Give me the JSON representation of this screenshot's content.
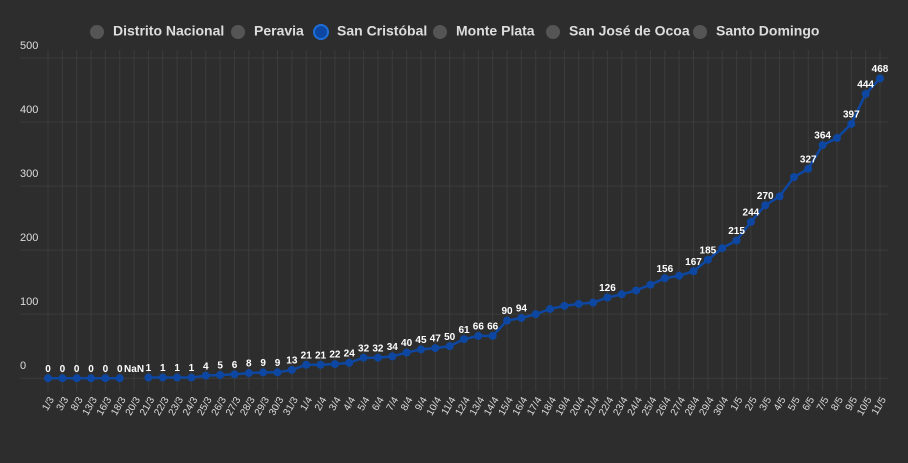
{
  "chart_data": {
    "type": "line",
    "legend": {
      "items": [
        "Distrito Nacional",
        "Peravia",
        "San Cristóbal",
        "Monte Plata",
        "San José de Ocoa",
        "Santo Domingo"
      ],
      "active": 2,
      "inactive_color": "#555555"
    },
    "categories": [
      "1/3",
      "3/3",
      "8/3",
      "13/3",
      "16/3",
      "18/3",
      "20/3",
      "21/3",
      "22/3",
      "23/3",
      "24/3",
      "25/3",
      "26/3",
      "27/3",
      "28/3",
      "29/3",
      "30/3",
      "31/3",
      "1/4",
      "2/4",
      "3/4",
      "4/4",
      "5/4",
      "6/4",
      "7/4",
      "8/4",
      "9/4",
      "10/4",
      "11/4",
      "12/4",
      "13/4",
      "14/4",
      "15/4",
      "16/4",
      "17/4",
      "18/4",
      "19/4",
      "20/4",
      "21/4",
      "22/4",
      "23/4",
      "24/4",
      "25/4",
      "26/4",
      "27/4",
      "28/4",
      "29/4",
      "30/4",
      "1/5",
      "2/5",
      "3/5",
      "4/5",
      "5/5",
      "6/5",
      "7/5",
      "8/5",
      "9/5",
      "10/5",
      "11/5"
    ],
    "series": [
      {
        "name": "San Cristóbal",
        "color": "#0d47a1",
        "values": [
          0,
          0,
          0,
          0,
          0,
          0,
          null,
          1,
          1,
          1,
          1,
          4,
          5,
          6,
          8,
          9,
          9,
          13,
          21,
          21,
          22,
          24,
          32,
          32,
          34,
          40,
          45,
          47,
          50,
          61,
          66,
          66,
          90,
          94,
          100,
          108,
          113,
          116,
          118,
          126,
          131,
          137,
          146,
          156,
          160,
          167,
          185,
          203,
          215,
          244,
          270,
          284,
          314,
          327,
          364,
          375,
          397,
          444,
          468
        ],
        "value_labels": [
          "0",
          "0",
          "0",
          "0",
          "0",
          "0",
          "NaN",
          "1",
          "1",
          "1",
          "1",
          "4",
          "5",
          "6",
          "8",
          "9",
          "9",
          "13",
          "21",
          "21",
          "22",
          "24",
          "32",
          "32",
          "34",
          "40",
          "45",
          "47",
          "50",
          "61",
          "66",
          "66",
          "90",
          "94",
          null,
          null,
          null,
          null,
          null,
          "126",
          null,
          null,
          null,
          "156",
          null,
          "167",
          "185",
          null,
          "215",
          "244",
          "270",
          null,
          null,
          "327",
          "364",
          null,
          "397",
          "444",
          "468"
        ]
      }
    ],
    "ylim": [
      -20,
      500
    ],
    "yticks": [
      0,
      100,
      200,
      300,
      400,
      500
    ],
    "grid": true
  }
}
